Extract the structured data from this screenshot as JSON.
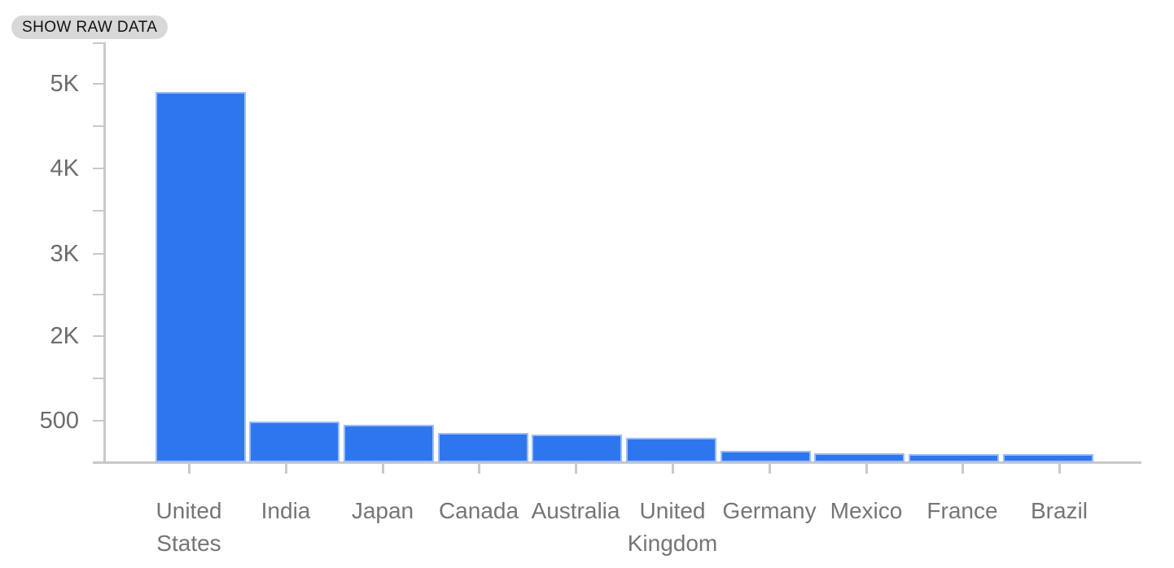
{
  "toolbar": {
    "show_raw_data_label": "SHOW RAW DATA"
  },
  "chart_data": {
    "type": "bar",
    "title": "",
    "xlabel": "",
    "ylabel": "",
    "categories": [
      "United States",
      "India",
      "Japan",
      "Canada",
      "Australia",
      "United Kingdom",
      "Germany",
      "Mexico",
      "France",
      "Brazil"
    ],
    "values": [
      4900,
      490,
      450,
      355,
      335,
      295,
      140,
      110,
      100,
      95
    ],
    "y_tick_labels": [
      "5K",
      "4K",
      "3K",
      "2K",
      "500"
    ],
    "y_tick_values": [
      5000,
      4000,
      3000,
      2000,
      500
    ],
    "ylim": [
      0,
      5200
    ],
    "grid": false,
    "legend": "none",
    "colors": {
      "bar_fill": "#2e76ee",
      "bar_edge": "#9dbcf6",
      "axis": "#c9c9c9",
      "tick_label": "#6c6c6c",
      "category_label": "#757575",
      "button_bg": "#d8d8d8",
      "button_text": "#111111"
    }
  }
}
